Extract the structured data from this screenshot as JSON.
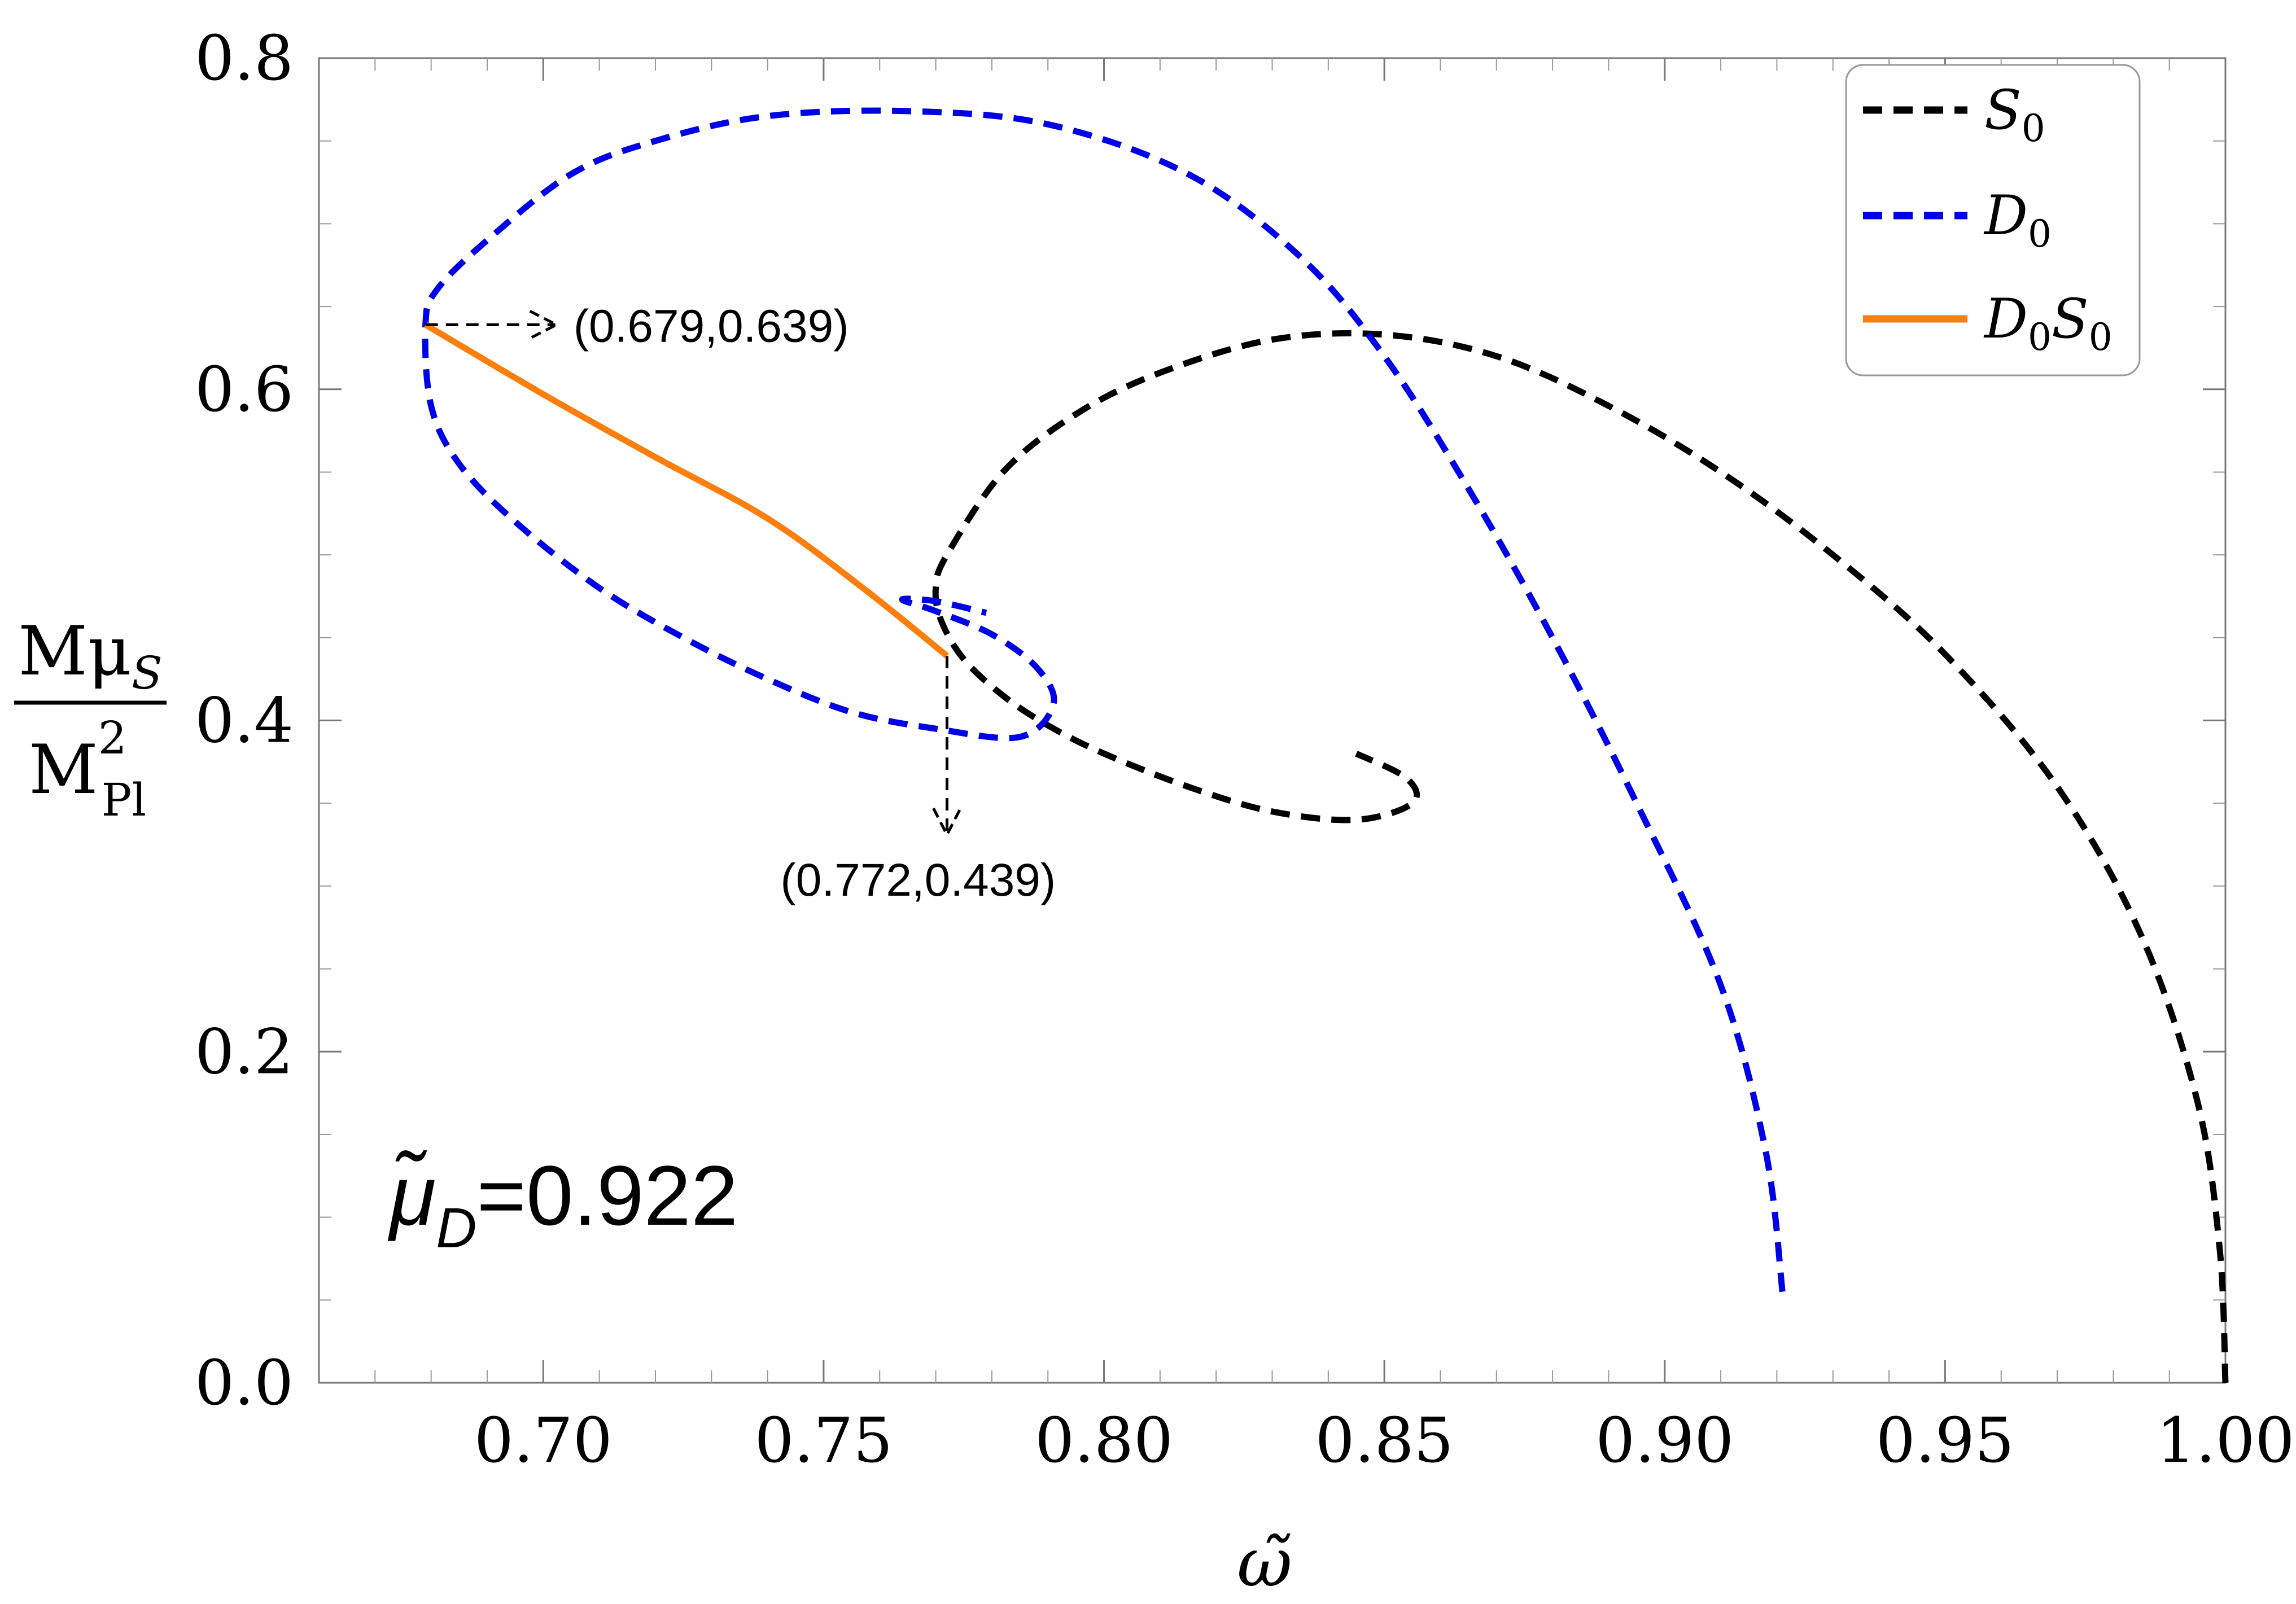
{
  "chart_data": {
    "type": "line",
    "xlim": [
      0.66,
      1.0
    ],
    "ylim": [
      0.0,
      0.8
    ],
    "x_ticks": [
      "0.70",
      "0.75",
      "0.80",
      "0.85",
      "0.90",
      "0.95",
      "1.00"
    ],
    "x_tick_values": [
      0.7,
      0.75,
      0.8,
      0.85,
      0.9,
      0.95,
      1.0
    ],
    "y_ticks": [
      "0.0",
      "0.2",
      "0.4",
      "0.6",
      "0.8"
    ],
    "y_tick_values": [
      0.0,
      0.2,
      0.4,
      0.6,
      0.8
    ],
    "xlabel": "ω̃",
    "ylabel": {
      "numerator_main": "Mμ",
      "numerator_sub": "S",
      "denominator_main": "M",
      "denominator_sup": "2",
      "denominator_sub": "Pl"
    },
    "grid": false,
    "legend_position": "top-right",
    "series": [
      {
        "name": "S",
        "name_sub": "0",
        "color": "#000000",
        "style": "dashed",
        "x": [
          1.0,
          0.999,
          0.995,
          0.985,
          0.97,
          0.95,
          0.93,
          0.91,
          0.89,
          0.87,
          0.85,
          0.83,
          0.81,
          0.795,
          0.782,
          0.772,
          0.77,
          0.771,
          0.775,
          0.782,
          0.79,
          0.8,
          0.815,
          0.83,
          0.845,
          0.855,
          0.854,
          0.845
        ],
        "y": [
          0.0,
          0.08,
          0.17,
          0.27,
          0.36,
          0.44,
          0.5,
          0.55,
          0.59,
          0.62,
          0.633,
          0.63,
          0.61,
          0.585,
          0.55,
          0.5,
          0.48,
          0.46,
          0.437,
          0.415,
          0.397,
          0.38,
          0.36,
          0.345,
          0.34,
          0.35,
          0.365,
          0.38
        ]
      },
      {
        "name": "D",
        "name_sub": "0",
        "color": "#0000e6",
        "style": "dashed",
        "x": [
          0.921,
          0.918,
          0.91,
          0.895,
          0.88,
          0.865,
          0.85,
          0.835,
          0.815,
          0.79,
          0.765,
          0.74,
          0.72,
          0.705,
          0.69,
          0.681,
          0.679,
          0.68,
          0.685,
          0.695,
          0.71,
          0.725,
          0.74,
          0.755,
          0.77,
          0.785,
          0.791,
          0.788,
          0.78,
          0.77,
          0.764,
          0.77,
          0.779
        ],
        "y": [
          0.055,
          0.14,
          0.24,
          0.35,
          0.45,
          0.54,
          0.62,
          0.68,
          0.73,
          0.76,
          0.768,
          0.765,
          0.75,
          0.73,
          0.69,
          0.66,
          0.639,
          0.59,
          0.555,
          0.52,
          0.48,
          0.45,
          0.425,
          0.405,
          0.395,
          0.39,
          0.41,
          0.432,
          0.452,
          0.466,
          0.473,
          0.472,
          0.465
        ]
      },
      {
        "name": "D",
        "name_sub": "0",
        "name2": "S",
        "name2_sub": "0",
        "color": "#ff7f0e",
        "style": "solid",
        "x": [
          0.679,
          0.7,
          0.72,
          0.74,
          0.757,
          0.772
        ],
        "y": [
          0.639,
          0.597,
          0.559,
          0.522,
          0.48,
          0.439
        ]
      }
    ],
    "annotations": [
      {
        "label": "(0.679,0.639)",
        "point": [
          0.679,
          0.639
        ]
      },
      {
        "label": "(0.772,0.439)",
        "point": [
          0.772,
          0.439
        ]
      }
    ],
    "parameter_label": {
      "symbol": "μ̃",
      "sub": "D",
      "value": "=0.922"
    }
  }
}
